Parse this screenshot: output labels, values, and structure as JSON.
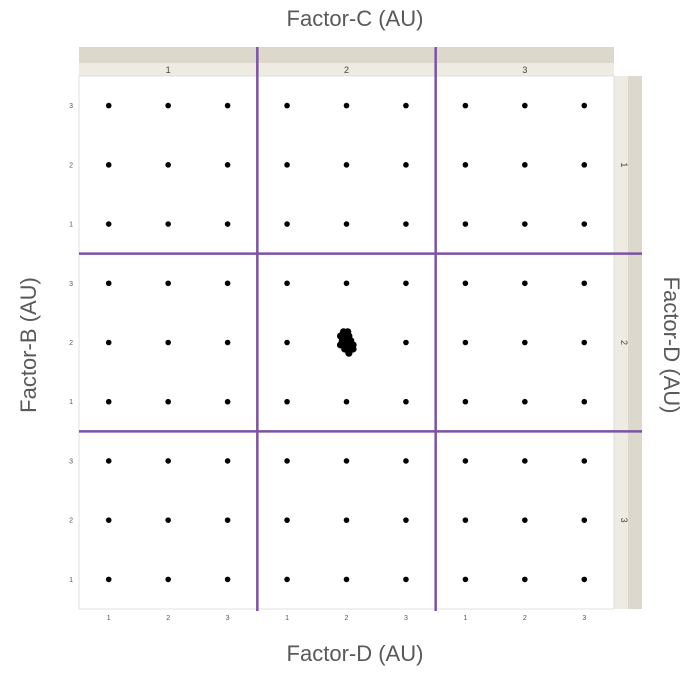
{
  "chart_data": {
    "type": "scatter",
    "layout": "facet_grid",
    "top_title": "Factor-C (AU)",
    "bottom_title": "Factor-D (AU)",
    "left_title": "Factor-B (AU)",
    "right_title": "Factor-D (AU)",
    "column_facets": [
      "1",
      "2",
      "3"
    ],
    "row_facets": [
      "1",
      "2",
      "3"
    ],
    "x_ticks": [
      "1",
      "2",
      "3"
    ],
    "y_ticks": [
      "1",
      "2",
      "3"
    ],
    "xlim": [
      0.5,
      3.5
    ],
    "ylim": [
      0.5,
      3.5
    ],
    "grid_points": {
      "x": [
        1,
        2,
        3
      ],
      "y": [
        1,
        2,
        3
      ],
      "description_of_rule": "one point at every (x, y) in every panel"
    },
    "cluster": {
      "column_facet": "2",
      "row_facet": "2",
      "points": [
        [
          1.95,
          2.18
        ],
        [
          2.02,
          2.18
        ],
        [
          1.9,
          2.11
        ],
        [
          1.97,
          2.11
        ],
        [
          2.04,
          2.11
        ],
        [
          1.93,
          2.03
        ],
        [
          2.0,
          2.03
        ],
        [
          2.07,
          2.03
        ],
        [
          1.9,
          1.96
        ],
        [
          1.97,
          1.96
        ],
        [
          2.04,
          1.96
        ],
        [
          2.11,
          1.96
        ],
        [
          1.97,
          1.89
        ],
        [
          2.04,
          1.89
        ],
        [
          2.11,
          1.89
        ],
        [
          2.04,
          1.82
        ]
      ]
    },
    "colors": {
      "point": "#000000",
      "divider": "#7b52a8",
      "strip_dark": "#dcd9cc",
      "strip_light": "#edebe2",
      "panel_border": "#d9d9d9"
    },
    "grid": false,
    "legend": "none"
  }
}
